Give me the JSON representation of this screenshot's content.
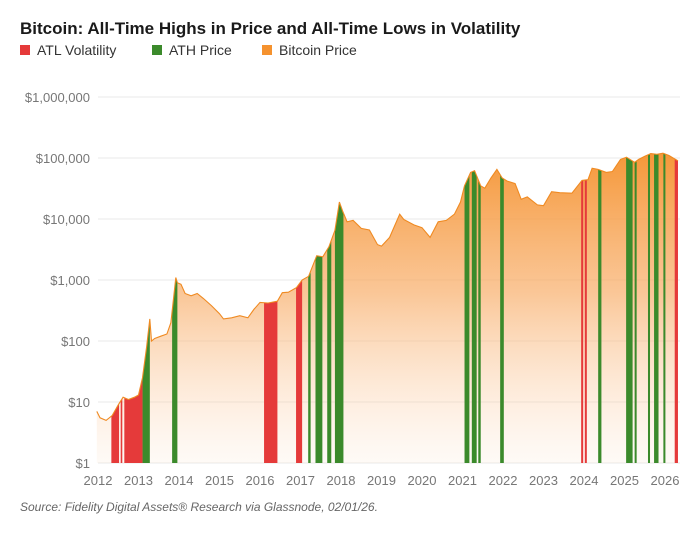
{
  "chart_data": {
    "type": "area",
    "title": "Bitcoin: All-Time Highs in Price and All-Time Lows in Volatility",
    "legend": [
      {
        "label": "ATL Volatility",
        "color": "#e53a3a"
      },
      {
        "label": "ATH Price",
        "color": "#3b8a2b"
      },
      {
        "label": "Bitcoin Price",
        "color": "#f5922e"
      }
    ],
    "legend_placement": "top-left",
    "y_scale": "log",
    "ylim": [
      1,
      1000000
    ],
    "y_ticks": [
      {
        "value": 1,
        "label": "$1"
      },
      {
        "value": 10,
        "label": "$10"
      },
      {
        "value": 100,
        "label": "$100"
      },
      {
        "value": 1000,
        "label": "$1,000"
      },
      {
        "value": 10000,
        "label": "$10,000"
      },
      {
        "value": 100000,
        "label": "$100,000"
      },
      {
        "value": 1000000,
        "label": "$1,000,000"
      }
    ],
    "xlim": [
      2012,
      2026.35
    ],
    "x_ticks": [
      "2012",
      "2013",
      "2014",
      "2015",
      "2016",
      "2017",
      "2018",
      "2019",
      "2020",
      "2021",
      "2022",
      "2023",
      "2024",
      "2025",
      "2026"
    ],
    "grid": "horizontal",
    "series": [
      {
        "name": "Bitcoin Price",
        "x": [
          2011.97,
          2012.05,
          2012.2,
          2012.35,
          2012.5,
          2012.62,
          2012.75,
          2012.9,
          2013.0,
          2013.1,
          2013.2,
          2013.28,
          2013.32,
          2013.4,
          2013.55,
          2013.7,
          2013.8,
          2013.92,
          2013.96,
          2014.05,
          2014.15,
          2014.3,
          2014.45,
          2014.6,
          2014.8,
          2015.0,
          2015.1,
          2015.3,
          2015.5,
          2015.7,
          2015.85,
          2016.0,
          2016.2,
          2016.43,
          2016.55,
          2016.7,
          2016.9,
          2017.04,
          2017.2,
          2017.4,
          2017.55,
          2017.7,
          2017.85,
          2017.96,
          2018.05,
          2018.15,
          2018.3,
          2018.5,
          2018.7,
          2018.9,
          2019.0,
          2019.2,
          2019.45,
          2019.55,
          2019.8,
          2020.0,
          2020.2,
          2020.4,
          2020.6,
          2020.8,
          2020.95,
          2021.05,
          2021.2,
          2021.3,
          2021.45,
          2021.55,
          2021.7,
          2021.85,
          2021.98,
          2022.1,
          2022.3,
          2022.45,
          2022.6,
          2022.85,
          2023.0,
          2023.2,
          2023.4,
          2023.7,
          2023.95,
          2024.1,
          2024.2,
          2024.35,
          2024.55,
          2024.7,
          2024.9,
          2025.05,
          2025.25,
          2025.35,
          2025.5,
          2025.65,
          2025.8,
          2025.95,
          2026.1,
          2026.2,
          2026.32
        ],
        "values": [
          7,
          5.5,
          5,
          6,
          9,
          12,
          11,
          12,
          13,
          25,
          80,
          230,
          100,
          110,
          120,
          130,
          200,
          1100,
          900,
          850,
          600,
          550,
          600,
          500,
          380,
          280,
          230,
          240,
          260,
          240,
          330,
          430,
          420,
          450,
          620,
          630,
          750,
          1000,
          1150,
          2500,
          2400,
          3500,
          6500,
          19000,
          13000,
          9000,
          9500,
          7000,
          6600,
          3800,
          3600,
          5000,
          12000,
          9800,
          8000,
          7200,
          5000,
          9000,
          9500,
          12000,
          19000,
          35000,
          58000,
          62000,
          35000,
          32000,
          47000,
          65000,
          47000,
          42000,
          38000,
          21000,
          23000,
          17000,
          16500,
          28000,
          27000,
          26500,
          43000,
          44000,
          68000,
          65000,
          58000,
          60000,
          95000,
          103000,
          85000,
          95000,
          107000,
          118000,
          115000,
          120000,
          110000,
          100000,
          90000
        ]
      }
    ],
    "bands": {
      "atl_volatility": [
        [
          2012.33,
          2012.52
        ],
        [
          2012.56,
          2012.6
        ],
        [
          2012.65,
          2013.1
        ],
        [
          2016.1,
          2016.43
        ],
        [
          2016.89,
          2017.04
        ],
        [
          2023.93,
          2023.98
        ],
        [
          2024.02,
          2024.07
        ],
        [
          2026.24,
          2026.32
        ]
      ],
      "ath_price": [
        [
          2013.1,
          2013.28
        ],
        [
          2013.83,
          2013.96
        ],
        [
          2017.19,
          2017.25
        ],
        [
          2017.37,
          2017.54
        ],
        [
          2017.66,
          2017.76
        ],
        [
          2017.85,
          2018.06
        ],
        [
          2021.05,
          2021.17
        ],
        [
          2021.23,
          2021.35
        ],
        [
          2021.39,
          2021.45
        ],
        [
          2021.93,
          2022.02
        ],
        [
          2024.35,
          2024.43
        ],
        [
          2025.04,
          2025.2
        ],
        [
          2025.25,
          2025.3
        ],
        [
          2025.58,
          2025.63
        ],
        [
          2025.73,
          2025.84
        ],
        [
          2025.96,
          2026.01
        ]
      ]
    },
    "source": "Source: Fidelity Digital Assets® Research via Glassnode, 02/01/26."
  }
}
